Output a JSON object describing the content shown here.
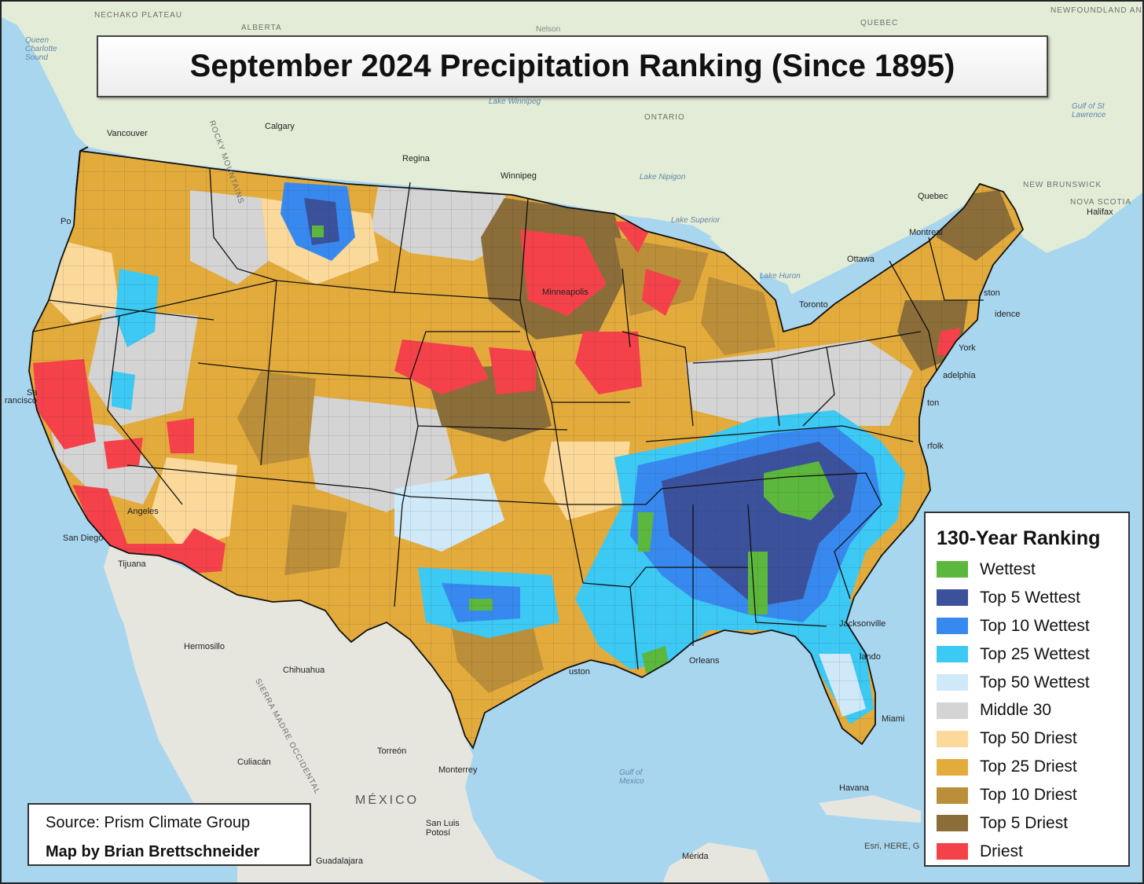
{
  "title": "September 2024 Precipitation Ranking (Since 1895)",
  "legend": {
    "title": "130-Year Ranking",
    "items": [
      {
        "label": "Wettest",
        "color": "#5cb83c"
      },
      {
        "label": "Top 5 Wettest",
        "color": "#3b519b"
      },
      {
        "label": "Top 10 Wettest",
        "color": "#3889ef"
      },
      {
        "label": "Top 25 Wettest",
        "color": "#3cc9f4"
      },
      {
        "label": "Top 50 Wettest",
        "color": "#cfe9f9"
      },
      {
        "label": "Middle 30",
        "color": "#d4d4d4"
      },
      {
        "label": "Top 50 Driest",
        "color": "#fbd99b"
      },
      {
        "label": "Top 25 Driest",
        "color": "#e3ab3c"
      },
      {
        "label": "Top 10 Driest",
        "color": "#bb8e3a"
      },
      {
        "label": "Top 5 Driest",
        "color": "#8b6d3a"
      },
      {
        "label": "Driest",
        "color": "#f5424a"
      }
    ]
  },
  "credits": {
    "source": "Source: Prism Climate Group",
    "author": "Map by Brian Brettschneider",
    "basemap_attribution": "Esri, HERE, G"
  },
  "basemap_colors": {
    "ocean": "#a9d6ef",
    "land": "#e3ecd6",
    "mexico": "#e6e6df"
  },
  "place_labels": {
    "nechako_plateau": "NECHAKO PLATEAU",
    "alberta": "ALBERTA",
    "nelson": "Nelson",
    "quebec": "QUEBEC",
    "newfoundland": "NEWFOUNDLAND AND LABRADOR",
    "queen_charlotte_sound": "Queen Charlotte Sound",
    "calgary": "Calgary",
    "vancouver": "Vancouver",
    "rocky": "ROCKY MOUNTAINS",
    "regina": "Regina",
    "lake_winnipeg": "Lake Winnipeg",
    "winnipeg": "Winnipeg",
    "ontario": "ONTARIO",
    "lake_nipigon": "Lake Nipigon",
    "gulf_st_lawrence": "Gulf of St Lawrence",
    "quebec_city": "Quebec",
    "new_brunswick": "NEW BRUNSWICK",
    "nova_scotia": "NOVA SCOTIA",
    "halifax": "Halifax",
    "montreal": "Montreal",
    "ottawa": "Ottawa",
    "lake_superior": "Lake Superior",
    "lake_huron": "Lake Huron",
    "toronto": "Toronto",
    "boston": "ston",
    "providence": "idence",
    "new_york": "York",
    "philadelphia": "adelphia",
    "washington": "ton",
    "norfolk": "rfolk",
    "minneapolis": "Minneapolis",
    "san_francisco": "rancisco",
    "sacramento": "Sa",
    "portland": "Po",
    "los_angeles": "Angeles",
    "san_diego": "San Diego",
    "tijuana": "Tijuana",
    "hermosillo": "Hermosillo",
    "chihuahua": "Chihuahua",
    "sierra_madre": "SIERRA MADRE OCCIDENTAL",
    "torreon": "Torreón",
    "monterrey": "Monterrey",
    "culiacan": "Culiacán",
    "mexico": "MÉXICO",
    "san_luis_potosi": "San Luis Potosí",
    "guadalajara": "Guadalajara",
    "gulf_of_mexico": "Gulf of Mexico",
    "houston": "uston",
    "new_orleans": "Orleans",
    "jacksonville": "Jacksonville",
    "orlando": "lando",
    "miami": "Miami",
    "havana": "Havana",
    "merida": "Mérida"
  }
}
